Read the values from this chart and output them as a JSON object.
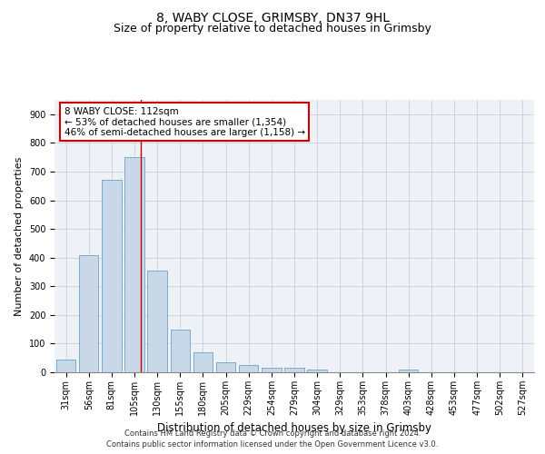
{
  "title": "8, WABY CLOSE, GRIMSBY, DN37 9HL",
  "subtitle": "Size of property relative to detached houses in Grimsby",
  "xlabel": "Distribution of detached houses by size in Grimsby",
  "ylabel": "Number of detached properties",
  "footnote1": "Contains HM Land Registry data © Crown copyright and database right 2024.",
  "footnote2": "Contains public sector information licensed under the Open Government Licence v3.0.",
  "categories": [
    "31sqm",
    "56sqm",
    "81sqm",
    "105sqm",
    "130sqm",
    "155sqm",
    "180sqm",
    "205sqm",
    "229sqm",
    "254sqm",
    "279sqm",
    "304sqm",
    "329sqm",
    "353sqm",
    "378sqm",
    "403sqm",
    "428sqm",
    "453sqm",
    "477sqm",
    "502sqm",
    "527sqm"
  ],
  "values": [
    45,
    410,
    670,
    750,
    355,
    148,
    70,
    35,
    25,
    15,
    15,
    8,
    0,
    0,
    0,
    8,
    0,
    0,
    0,
    0,
    0
  ],
  "bar_color": "#c8d8e8",
  "bar_edgecolor": "#7aaccc",
  "annotation_line1": "8 WABY CLOSE: 112sqm",
  "annotation_line2": "← 53% of detached houses are smaller (1,354)",
  "annotation_line3": "46% of semi-detached houses are larger (1,158) →",
  "vline_color": "#cc0000",
  "annotation_box_color": "#cc0000",
  "ylim": [
    0,
    950
  ],
  "yticks": [
    0,
    100,
    200,
    300,
    400,
    500,
    600,
    700,
    800,
    900
  ],
  "grid_color": "#c8d0d8",
  "bg_color": "#eef2f6",
  "title_fontsize": 10,
  "subtitle_fontsize": 9,
  "xlabel_fontsize": 8.5,
  "ylabel_fontsize": 8,
  "tick_fontsize": 7,
  "annotation_fontsize": 7.5,
  "footnote_fontsize": 6
}
